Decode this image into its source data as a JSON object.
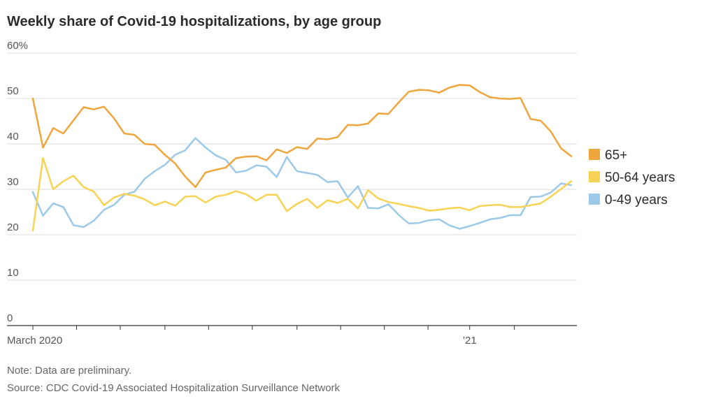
{
  "title": "Weekly share of Covid-19 hospitalizations, by age group",
  "note": "Note: Data are preliminary.",
  "source": "Source: CDC Covid-19 Associated Hospitalization Surveillance Network",
  "chart_data": {
    "type": "line",
    "title": "Weekly share of Covid-19 hospitalizations, by age group",
    "xlabel": "",
    "ylabel": "",
    "ylim": [
      0,
      60
    ],
    "y_ticks": [
      0,
      10,
      20,
      30,
      40,
      50,
      60
    ],
    "y_tick_labels": [
      "0",
      "10",
      "20",
      "30",
      "40",
      "50",
      "60%"
    ],
    "x_tick_labels": [
      {
        "label": "March 2020",
        "week": 0
      },
      {
        "label": "’21",
        "week": 43
      }
    ],
    "month_ticks_weeks": [
      0,
      4.3,
      8.6,
      13,
      17.3,
      21.6,
      26,
      30.3,
      34.6,
      38.9,
      43,
      47.4
    ],
    "grid": true,
    "legend_position": "right",
    "series": [
      {
        "name": "65+",
        "color": "#f0a53c",
        "values": [
          50,
          39.2,
          43.5,
          42.3,
          45.2,
          48.1,
          47.6,
          48.2,
          45.6,
          42.3,
          42.0,
          40.0,
          39.8,
          37.6,
          35.7,
          32.8,
          30.5,
          33.7,
          34.3,
          34.8,
          36.9,
          37.2,
          37.3,
          36.4,
          38.8,
          38.0,
          39.3,
          38.9,
          41.2,
          41.0,
          41.5,
          44.2,
          44.1,
          44.5,
          46.7,
          46.6,
          49.1,
          51.5,
          51.9,
          51.8,
          51.3,
          52.4,
          53.0,
          52.9,
          51.4,
          50.3,
          50.0,
          49.9,
          50.1,
          45.5,
          45.1,
          42.7,
          39.0,
          37.3
        ]
      },
      {
        "name": "50-64 years",
        "color": "#f7d354",
        "values": [
          20.9,
          36.9,
          30.0,
          31.8,
          33.0,
          30.5,
          29.5,
          26.5,
          28.2,
          29.0,
          28.6,
          27.8,
          26.5,
          27.3,
          26.4,
          28.4,
          28.5,
          27.1,
          28.4,
          28.8,
          29.6,
          28.9,
          27.5,
          28.8,
          28.8,
          25.2,
          26.8,
          27.9,
          25.9,
          27.6,
          27.0,
          27.9,
          25.8,
          29.8,
          28.0,
          27.2,
          26.8,
          26.3,
          25.9,
          25.3,
          25.5,
          25.8,
          26.0,
          25.4,
          26.3,
          26.5,
          26.6,
          26.1,
          26.1,
          26.5,
          26.9,
          28.4,
          30.1,
          31.8
        ]
      },
      {
        "name": "0-49 years",
        "color": "#9dc9e9",
        "values": [
          29.4,
          24.2,
          26.9,
          26.1,
          22.1,
          21.7,
          23.1,
          25.5,
          26.6,
          28.8,
          29.5,
          32.3,
          34.0,
          35.4,
          37.6,
          38.6,
          41.3,
          39.2,
          37.5,
          36.5,
          33.7,
          34.1,
          35.3,
          35.0,
          32.7,
          37.1,
          34.0,
          33.6,
          33.2,
          31.6,
          31.8,
          28.2,
          30.7,
          25.9,
          25.8,
          26.7,
          24.4,
          22.5,
          22.6,
          23.2,
          23.4,
          22.1,
          21.3,
          21.9,
          22.6,
          23.4,
          23.7,
          24.3,
          24.3,
          28.3,
          28.4,
          29.3,
          31.3,
          30.9
        ]
      }
    ]
  }
}
